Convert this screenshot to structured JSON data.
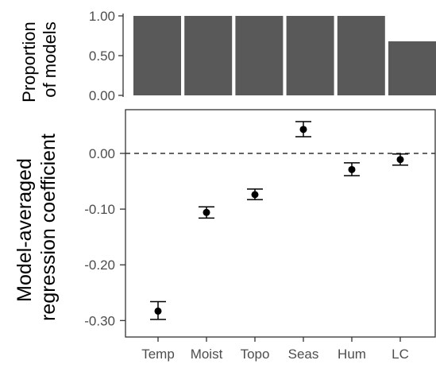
{
  "chart_data": [
    {
      "type": "bar",
      "ylabel": "Proportion\nof models",
      "categories": [
        "Temp",
        "Moist",
        "Topo",
        "Seas",
        "Hum",
        "LC"
      ],
      "values": [
        1.0,
        1.0,
        1.0,
        1.0,
        1.0,
        0.68
      ],
      "ylim": [
        0,
        1.0
      ],
      "yticks": [
        "1.00",
        "0.50",
        "0.00"
      ],
      "bar_color": "#595959",
      "grid": false
    },
    {
      "type": "scatter",
      "ylabel": "Model-averaged\nregression coefficient",
      "categories": [
        "Temp",
        "Moist",
        "Topo",
        "Seas",
        "Hum",
        "LC"
      ],
      "values": [
        -0.283,
        -0.106,
        -0.074,
        0.043,
        -0.029,
        -0.011
      ],
      "ci_low": [
        -0.298,
        -0.116,
        -0.083,
        0.03,
        -0.04,
        -0.021
      ],
      "ci_high": [
        -0.266,
        -0.096,
        -0.064,
        0.057,
        -0.017,
        -0.001
      ],
      "ylim": [
        -0.32,
        0.075
      ],
      "yticks": [
        "0.00",
        "-0.10",
        "-0.20",
        "-0.30"
      ],
      "reference_line": 0.0,
      "xtick_labels": [
        "Temp",
        "Moist",
        "Topo",
        "Seas",
        "Hum",
        "LC"
      ],
      "grid": false
    }
  ]
}
